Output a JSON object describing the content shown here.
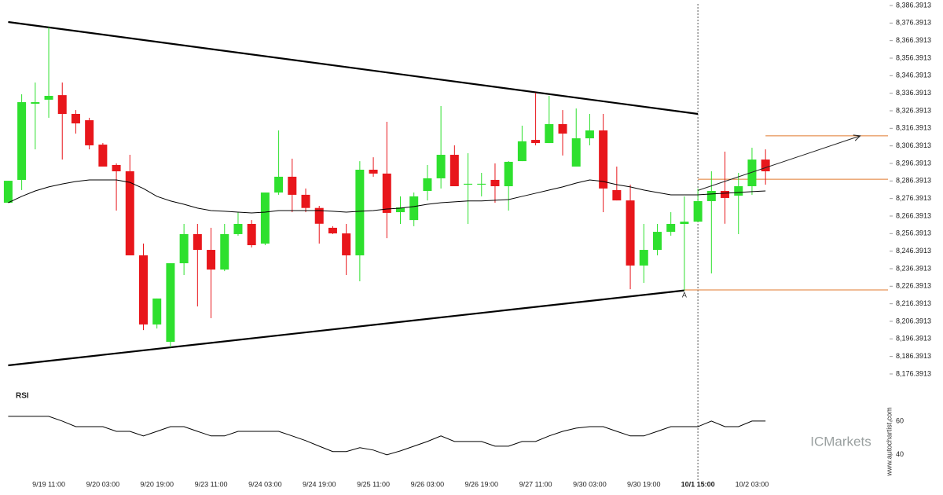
{
  "chart_data": [
    {
      "type": "candlestick",
      "categories": [
        null,
        null,
        null,
        "9/19 11:00",
        null,
        null,
        null,
        "9/20 03:00",
        null,
        null,
        null,
        "9/20 19:00",
        null,
        null,
        null,
        "9/23 11:00",
        null,
        null,
        null,
        "9/24 03:00",
        null,
        null,
        null,
        "9/24 19:00",
        null,
        null,
        null,
        "9/25 11:00",
        null,
        null,
        null,
        "9/26 03:00",
        null,
        null,
        null,
        "9/26 19:00",
        null,
        null,
        null,
        "9/27 11:00",
        null,
        null,
        null,
        "9/30 03:00",
        null,
        null,
        null,
        "9/30 19:00",
        null,
        null,
        null,
        "10/1 15:00",
        null,
        null,
        null,
        "10/2 03:00",
        null
      ],
      "open": [
        8274.0,
        8287.0,
        8330.4,
        8332.7,
        8335.3,
        8324.6,
        8321.0,
        8307.1,
        8295.5,
        8291.9,
        8244.0,
        8204.6,
        8194.7,
        8239.5,
        8256.1,
        8247.1,
        8235.9,
        8256.1,
        8261.9,
        8250.7,
        8279.8,
        8288.8,
        8278.5,
        8271.0,
        8259.7,
        8256.5,
        8244.0,
        8292.8,
        8290.6,
        8268.6,
        8264.1,
        8280.7,
        8287.9,
        8301.3,
        8284.3,
        8284.3,
        8287.0,
        8283.4,
        8297.7,
        8309.8,
        8308.0,
        8318.8,
        8294.6,
        8310.7,
        8315.2,
        8281.2,
        8275.3,
        8238.2,
        8247.1,
        8257.4,
        8261.9,
        8263.2,
        8274.9,
        8280.7,
        8278.0,
        8283.4,
        8298.6
      ],
      "high": [
        8286.5,
        8335.8,
        8342.5,
        8373.9,
        8342.5,
        8326.8,
        8322.4,
        8308.0,
        8296.4,
        8301.3,
        8250.7,
        8219.4,
        8239.5,
        8261.9,
        8261.9,
        8259.7,
        8261.9,
        8268.6,
        8264.1,
        8279.8,
        8315.2,
        8299.1,
        8282.1,
        8272.2,
        8260.6,
        8261.9,
        8297.7,
        8299.9,
        8320.1,
        8277.6,
        8279.8,
        8295.5,
        8329.1,
        8306.7,
        8302.2,
        8291.0,
        8296.4,
        8297.7,
        8317.9,
        8336.7,
        8334.9,
        8326.8,
        8327.7,
        8324.6,
        8324.6,
        8294.6,
        8284.3,
        8261.9,
        8261.9,
        8268.6,
        8277.6,
        8282.1,
        8291.9,
        8303.1,
        8291.0,
        8305.3,
        8304.4
      ],
      "low": [
        8274.0,
        8281.2,
        8304.4,
        8322.4,
        8298.6,
        8313.4,
        8304.4,
        8294.6,
        8269.5,
        8244.0,
        8201.4,
        8202.3,
        8191.6,
        8232.8,
        8214.9,
        8208.2,
        8235.0,
        8255.2,
        8248.5,
        8249.8,
        8278.5,
        8268.6,
        8268.6,
        8250.7,
        8256.1,
        8232.8,
        8229.2,
        8288.8,
        8253.8,
        8261.9,
        8260.6,
        8275.3,
        8282.1,
        8283.4,
        8261.9,
        8277.6,
        8274.0,
        8269.5,
        8297.7,
        8306.7,
        8308.0,
        8300.9,
        8294.6,
        8306.7,
        8268.6,
        8275.3,
        8224.7,
        8228.3,
        8244.0,
        8255.2,
        8224.0,
        8263.2,
        8233.7,
        8262.0,
        8256.1,
        8278.5,
        8284.3
      ],
      "close": [
        8286.5,
        8331.3,
        8331.3,
        8334.9,
        8324.6,
        8319.2,
        8306.7,
        8294.6,
        8291.9,
        8244.0,
        8204.6,
        8219.4,
        8239.5,
        8256.1,
        8247.1,
        8235.9,
        8256.1,
        8261.9,
        8249.8,
        8279.8,
        8288.8,
        8278.5,
        8271.0,
        8262.0,
        8256.5,
        8244.0,
        8292.8,
        8290.6,
        8268.2,
        8271.3,
        8277.6,
        8287.9,
        8301.3,
        8283.4,
        8284.8,
        8284.8,
        8283.4,
        8297.3,
        8309.0,
        8308.0,
        8318.8,
        8313.4,
        8310.7,
        8315.2,
        8282.1,
        8275.3,
        8238.2,
        8247.1,
        8257.4,
        8261.9,
        8263.2,
        8274.9,
        8280.7,
        8276.7,
        8283.4,
        8298.6,
        8291.9
      ],
      "up_color": "#2ee02e",
      "down_color": "#e8161b",
      "ma": {
        "color": "#000000",
        "values": [
          8274.0,
          8277.6,
          8280.7,
          8283.0,
          8284.7,
          8286.1,
          8287.0,
          8287.0,
          8287.0,
          8285.6,
          8282.1,
          8277.6,
          8275.0,
          8273.1,
          8270.9,
          8269.5,
          8269.1,
          8268.6,
          8268.2,
          8268.6,
          8269.5,
          8269.5,
          8269.5,
          8269.5,
          8269.1,
          8268.6,
          8269.1,
          8269.5,
          8270.4,
          8270.9,
          8271.8,
          8273.1,
          8274.0,
          8274.5,
          8275.0,
          8275.0,
          8275.4,
          8275.8,
          8277.6,
          8279.4,
          8281.2,
          8283.0,
          8285.2,
          8287.0,
          8286.1,
          8284.3,
          8283.0,
          8281.2,
          8279.8,
          8278.5,
          8278.5,
          8278.5,
          8279.0,
          8279.4,
          8279.8,
          8280.3,
          8280.7
        ]
      },
      "trendlines": [
        {
          "x": [
            0,
            51
          ],
          "values": [
            8377.0,
            8324.6
          ]
        },
        {
          "x": [
            0,
            50
          ],
          "values": [
            8181.3,
            8224.0
          ]
        }
      ],
      "levels": {
        "color": "#e07a2e",
        "items": [
          {
            "from": 56,
            "value": 8312.1
          },
          {
            "from": 51,
            "value": 8287.4
          },
          {
            "from": 50,
            "value": 8224.3
          }
        ]
      },
      "arrow": {
        "x": [
          51,
          63
        ],
        "values": [
          8281.0,
          8312.1
        ]
      },
      "annotations": [
        {
          "text": "A",
          "x": 50,
          "value": 8221.1
        }
      ],
      "vline": 51,
      "ylim": [
        8174.58,
        8389.53
      ],
      "yticks": [
        {
          "value": 8386.3913,
          "label": "8,386.3913"
        },
        {
          "value": 8376.3913,
          "label": "8,376.3913"
        },
        {
          "value": 8366.3913,
          "label": "8,366.3913"
        },
        {
          "value": 8356.3913,
          "label": "8,356.3913"
        },
        {
          "value": 8346.3913,
          "label": "8,346.3913"
        },
        {
          "value": 8336.3913,
          "label": "8,336.3913"
        },
        {
          "value": 8326.3913,
          "label": "8,326.3913"
        },
        {
          "value": 8316.3913,
          "label": "8,316.3913"
        },
        {
          "value": 8306.3913,
          "label": "8,306.3913"
        },
        {
          "value": 8296.3913,
          "label": "8,296.3913"
        },
        {
          "value": 8286.3913,
          "label": "8,286.3913"
        },
        {
          "value": 8276.3913,
          "label": "8,276.3913"
        },
        {
          "value": 8266.3913,
          "label": "8,266.3913"
        },
        {
          "value": 8256.3913,
          "label": "8,256.3913"
        },
        {
          "value": 8246.3913,
          "label": "8,246.3913"
        },
        {
          "value": 8236.3913,
          "label": "8,236.3913"
        },
        {
          "value": 8226.3913,
          "label": "8,226.3913"
        },
        {
          "value": 8216.3913,
          "label": "8,216.3913"
        },
        {
          "value": 8206.3913,
          "label": "8,206.3913"
        },
        {
          "value": 8196.3913,
          "label": "8,196.3913"
        },
        {
          "value": 8186.3913,
          "label": "8,186.3913"
        },
        {
          "value": 8176.3913,
          "label": "8,176.3913"
        }
      ]
    },
    {
      "type": "line",
      "title": "RSI",
      "color": "#000000",
      "values": [
        62.8,
        62.8,
        62.8,
        62.8,
        60,
        56.7,
        56.7,
        56.7,
        53.9,
        53.9,
        51.2,
        53.9,
        56.7,
        56.7,
        53.9,
        51.2,
        51.2,
        53.9,
        53.9,
        53.9,
        53.9,
        51.2,
        48.4,
        45.1,
        41.9,
        41.9,
        44.2,
        42.8,
        40,
        42.3,
        45.1,
        47.9,
        51.2,
        47.9,
        47.9,
        47.9,
        45.1,
        45.1,
        47.9,
        47.9,
        51.2,
        53.9,
        55.8,
        56.7,
        56.7,
        53.9,
        51.2,
        51.2,
        53.9,
        56.7,
        56.7,
        56.7,
        60,
        56.7,
        56.7,
        60,
        60
      ],
      "ylim": [
        25,
        80
      ],
      "yticks": [
        40,
        60
      ]
    }
  ],
  "watermarks": {
    "site": "www.autochartist.com",
    "brand": "ICMarkets"
  }
}
